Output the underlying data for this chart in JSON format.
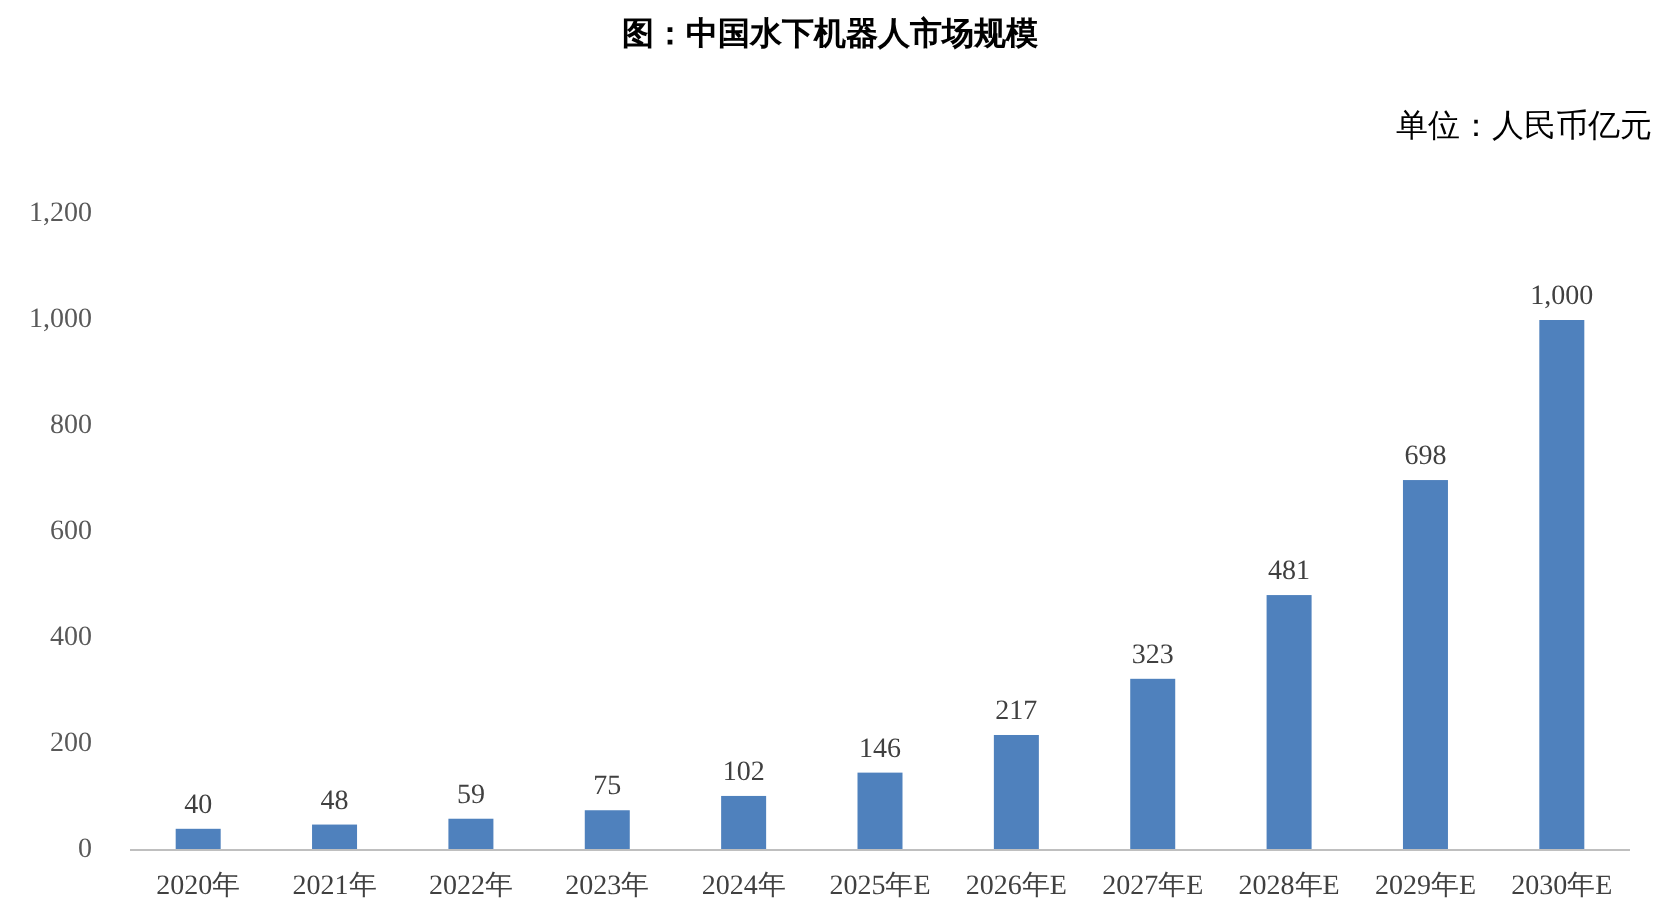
{
  "chart_data": {
    "type": "bar",
    "title": "图：中国水下机器人市场规模",
    "annotations": [
      "单位：人民币亿元"
    ],
    "categories": [
      "2020年",
      "2021年",
      "2022年",
      "2023年",
      "2024年",
      "2025年E",
      "2026年E",
      "2027年E",
      "2028年E",
      "2029年E",
      "2030年E"
    ],
    "series": [
      {
        "color": "#4f81bd",
        "values": [
          40,
          48,
          59,
          75,
          102,
          146,
          217,
          323,
          481,
          698,
          1000
        ],
        "value_labels": [
          "40",
          "48",
          "59",
          "75",
          "102",
          "146",
          "217",
          "323",
          "481",
          "698",
          "1,000"
        ]
      }
    ],
    "ylim": [
      0,
      1200
    ],
    "yticks": [
      0,
      200,
      400,
      600,
      800,
      {
        "value": 1000,
        "label": "1,000"
      },
      {
        "value": 1200,
        "label": "1,200"
      }
    ]
  }
}
